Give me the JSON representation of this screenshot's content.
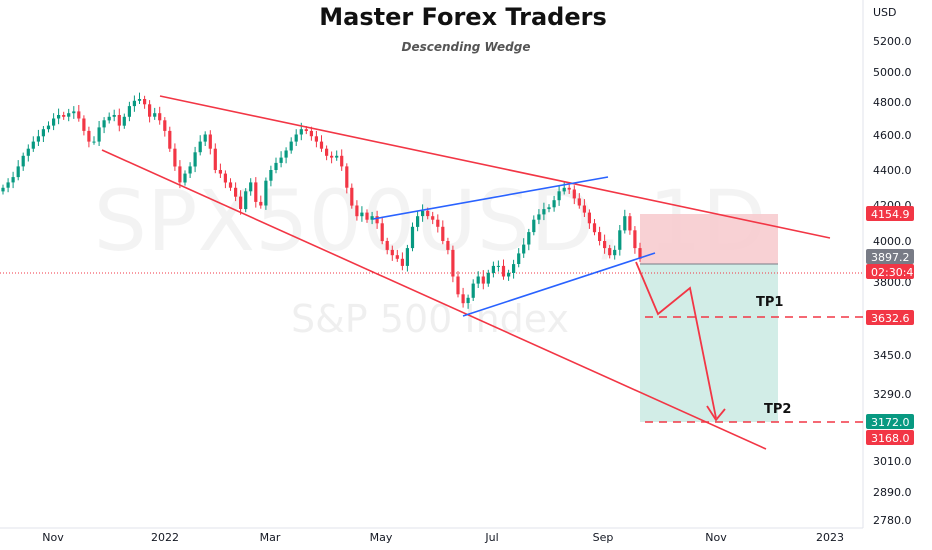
{
  "chart_data": {
    "type": "candlestick",
    "title": "Master Forex Traders",
    "subtitle": "Descending Wedge",
    "watermark_symbol": "SPX500USD, 1D",
    "watermark_name": "S&P 500 Index",
    "currency": "USD",
    "y_ticks": [
      "5200.0",
      "5000.0",
      "4800.0",
      "4600.0",
      "4400.0",
      "4200.0",
      "4000.0",
      "3800.0",
      "3632.6",
      "3450.0",
      "3290.0",
      "3168.0",
      "3010.0",
      "2890.0",
      "2780.0"
    ],
    "x_ticks": [
      "Nov",
      "2022",
      "Mar",
      "May",
      "Jul",
      "Sep",
      "Nov",
      "2023"
    ],
    "price_labels": [
      {
        "value": "4154.9",
        "color": "#f23645"
      },
      {
        "value": "3897.2",
        "color": "#787b86"
      },
      {
        "value": "02:30:40",
        "color": "#f23645"
      },
      {
        "value": "3632.6",
        "color": "#f23645"
      },
      {
        "value": "3172.0",
        "color": "#089981"
      },
      {
        "value": "3168.0",
        "color": "#f23645"
      }
    ],
    "targets": [
      {
        "label": "TP1",
        "value": 3632.6
      },
      {
        "label": "TP2",
        "value": 3172.0
      }
    ],
    "colors": {
      "up": "#089981",
      "down": "#f23645",
      "wedge": "#f23645",
      "channel": "#2962ff",
      "stop_zone": "#f7c9cd",
      "target_zone": "#cdebe4"
    },
    "closes": [
      4300,
      4330,
      4360,
      4420,
      4480,
      4520,
      4560,
      4590,
      4630,
      4650,
      4690,
      4710,
      4700,
      4720,
      4730,
      4690,
      4620,
      4560,
      4560,
      4640,
      4680,
      4700,
      4710,
      4650,
      4700,
      4760,
      4790,
      4800,
      4770,
      4700,
      4720,
      4680,
      4620,
      4520,
      4420,
      4330,
      4380,
      4420,
      4500,
      4560,
      4600,
      4520,
      4400,
      4380,
      4330,
      4300,
      4250,
      4180,
      4280,
      4330,
      4220,
      4200,
      4340,
      4400,
      4440,
      4470,
      4510,
      4560,
      4600,
      4630,
      4620,
      4590,
      4560,
      4520,
      4480,
      4470,
      4480,
      4420,
      4300,
      4200,
      4140,
      4160,
      4120,
      4140,
      4100,
      4000,
      3950,
      3920,
      3900,
      3860,
      3960,
      4080,
      4140,
      4170,
      4140,
      4120,
      4080,
      4000,
      3950,
      3800,
      3700,
      3650,
      3680,
      3760,
      3800,
      3760,
      3820,
      3860,
      3860,
      3800,
      3820,
      3870,
      3930,
      3980,
      4050,
      4120,
      4150,
      4180,
      4190,
      4230,
      4280,
      4300,
      4290,
      4240,
      4200,
      4160,
      4100,
      4050,
      4000,
      3960,
      3920,
      3950,
      4060,
      4140,
      4060,
      3960,
      3900
    ]
  }
}
